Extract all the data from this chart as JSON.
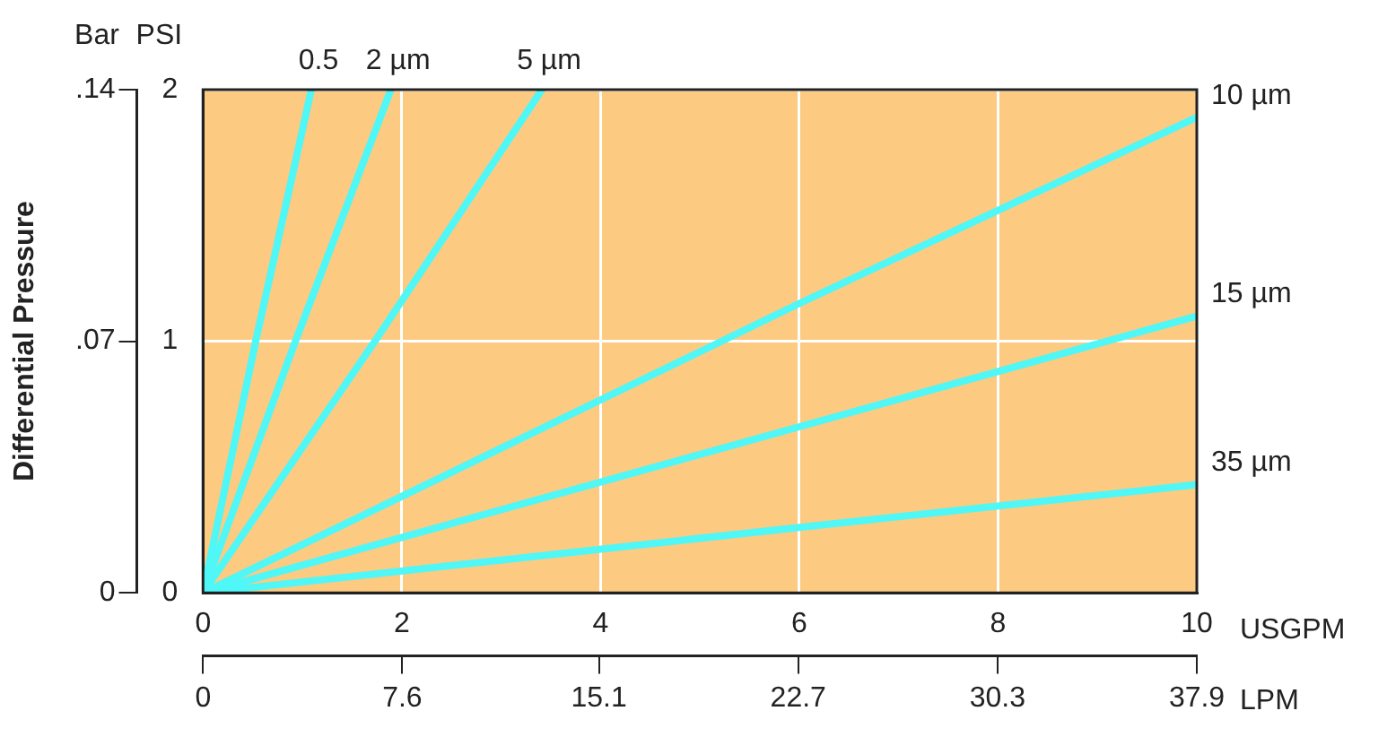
{
  "chart_data": {
    "type": "line",
    "xlabel": "USGPM",
    "x2label": "LPM",
    "ylabel": "PSI",
    "y2label": "Bar",
    "annotations": [
      "Differential Pressure"
    ],
    "xlim": [
      0,
      10
    ],
    "xticks": [
      0,
      2,
      4,
      6,
      8,
      10
    ],
    "x2lim": [
      0,
      37.9
    ],
    "x2ticks": [
      0,
      7.6,
      15.1,
      22.7,
      30.3,
      37.9
    ],
    "ylim": [
      0,
      2
    ],
    "yticks": [
      0,
      1,
      2
    ],
    "y2lim": [
      0,
      0.14
    ],
    "y2ticks": [
      0,
      {
        "value": 0.07,
        "label": ".07"
      },
      {
        "value": 0.14,
        "label": ".14"
      }
    ],
    "grid": true,
    "marker": "none",
    "line_style": "solid",
    "series": [
      {
        "name": "0.5",
        "color": "#4ff7f7",
        "x": [
          0,
          0.53,
          1.09
        ],
        "values": [
          0,
          1,
          2
        ]
      },
      {
        "name": "2 µm",
        "color": "#4ff7f7",
        "x": [
          0,
          0.93,
          1.89
        ],
        "values": [
          0,
          1,
          2
        ]
      },
      {
        "name": "5 µm",
        "color": "#4ff7f7",
        "x": [
          0,
          1.73,
          3.41
        ],
        "values": [
          0,
          1,
          2
        ]
      },
      {
        "name": "10 µm",
        "color": "#4ff7f7",
        "x": [
          0,
          6,
          8,
          10
        ],
        "values": [
          0,
          1.15,
          1.52,
          1.89
        ]
      },
      {
        "name": "15 µm",
        "color": "#4ff7f7",
        "x": [
          0,
          6,
          8,
          10
        ],
        "values": [
          0,
          0.66,
          0.88,
          1.1
        ]
      },
      {
        "name": "35 µm",
        "color": "#4ff7f7",
        "x": [
          0,
          6,
          10
        ],
        "values": [
          0,
          0.26,
          0.43
        ]
      }
    ]
  }
}
